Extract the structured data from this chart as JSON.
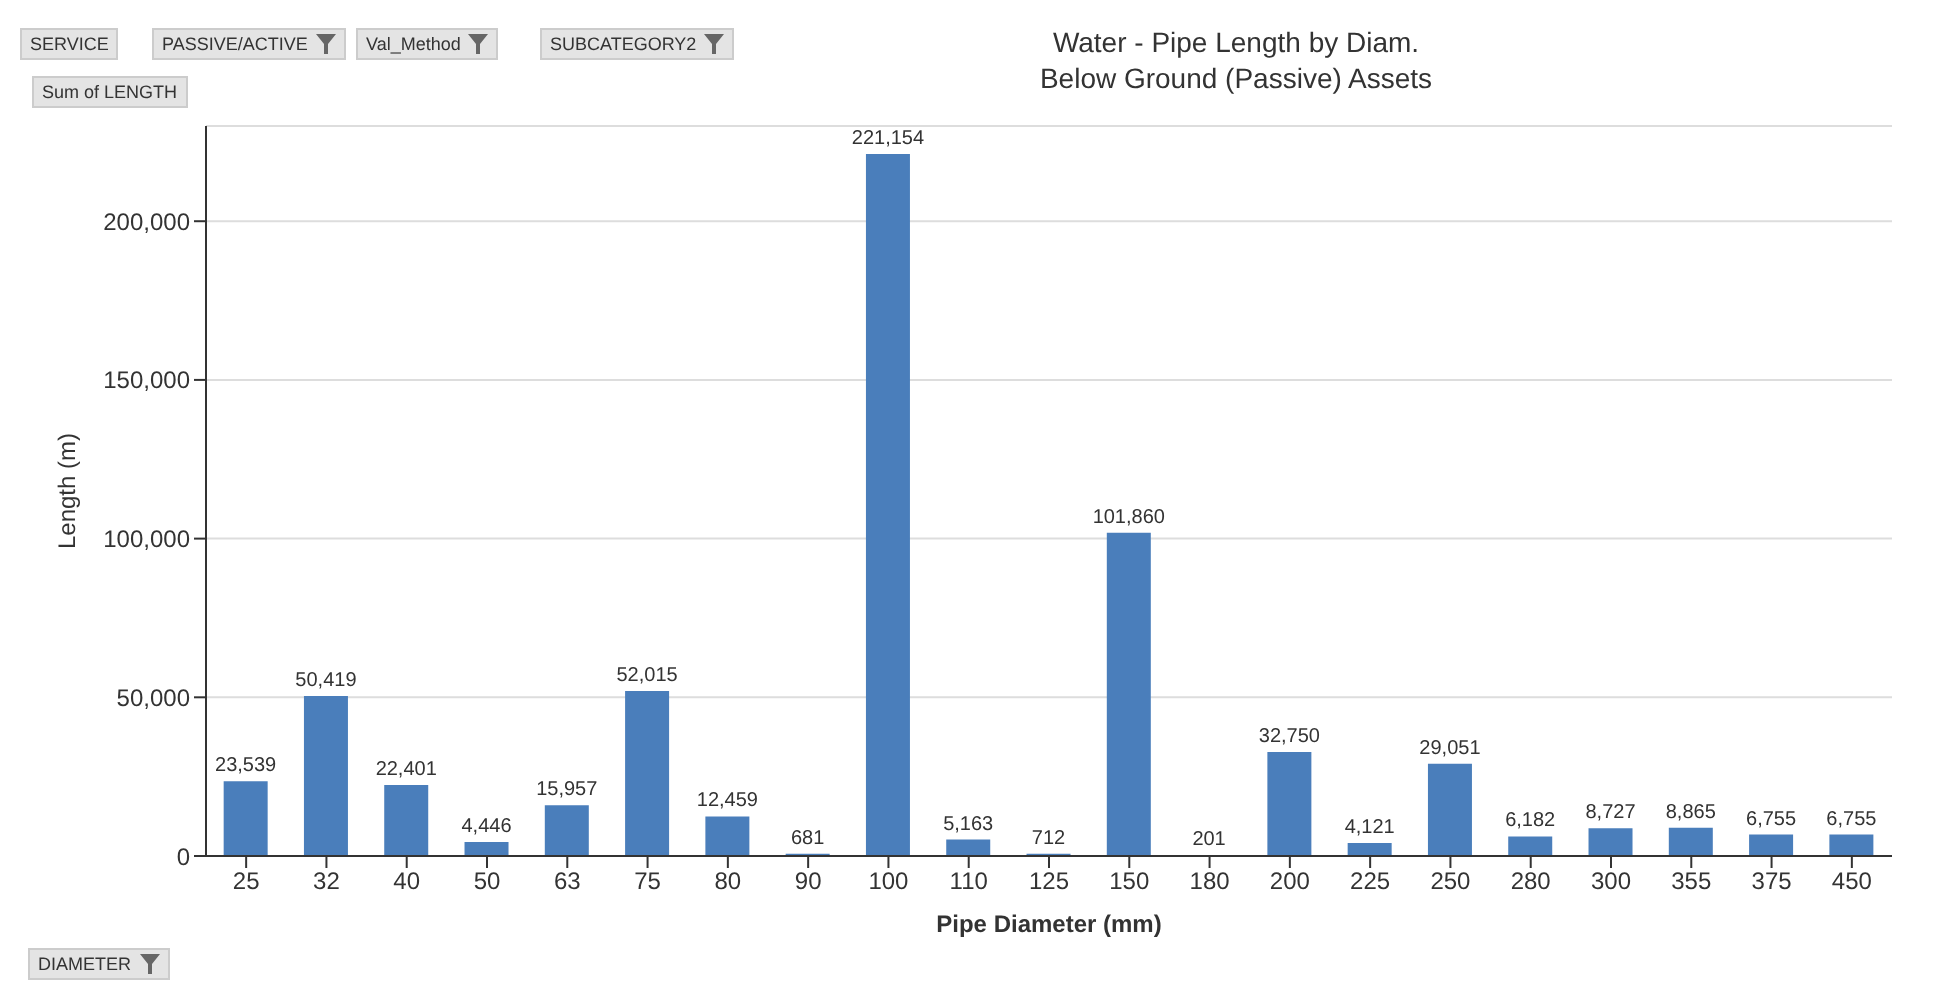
{
  "chart_data": {
    "type": "bar",
    "title": "Water - Pipe Length by Diam.",
    "subtitle": "Below Ground (Passive) Assets",
    "xlabel": "Pipe Diameter (mm)",
    "ylabel": "Length (m)",
    "categories": [
      "25",
      "32",
      "40",
      "50",
      "63",
      "75",
      "80",
      "90",
      "100",
      "110",
      "125",
      "150",
      "180",
      "200",
      "225",
      "250",
      "280",
      "300",
      "355",
      "375",
      "450"
    ],
    "values": [
      23539,
      50419,
      22401,
      4446,
      15957,
      52015,
      12459,
      681,
      221154,
      5163,
      712,
      101860,
      201,
      32750,
      4121,
      29051,
      6182,
      8727,
      8865,
      6755,
      6755
    ],
    "color": "#4a7ebb",
    "value_labels": [
      "23,539",
      "50,419",
      "22,401",
      "4,446",
      "15,957",
      "52,015",
      "12,459",
      "681",
      "221,154",
      "5,163",
      "712",
      "101,860",
      "201",
      "32,750",
      "4,121",
      "29,051",
      "6,182",
      "8,727",
      "8,865",
      "6,755",
      "6,755"
    ],
    "ylim": [
      0,
      230000
    ],
    "yticks": [
      0,
      {
        "value": 50000,
        "label": "50,000"
      },
      {
        "value": 100000,
        "label": "100,000"
      },
      {
        "value": 150000,
        "label": "150,000"
      },
      {
        "value": 200000,
        "label": "200,000"
      }
    ],
    "grid": "y",
    "annotations": [
      "SERVICE",
      "PASSIVE/ACTIVE",
      "Val_Method",
      "SUBCATEGORY2",
      "Sum of LENGTH",
      "DIAMETER"
    ]
  }
}
